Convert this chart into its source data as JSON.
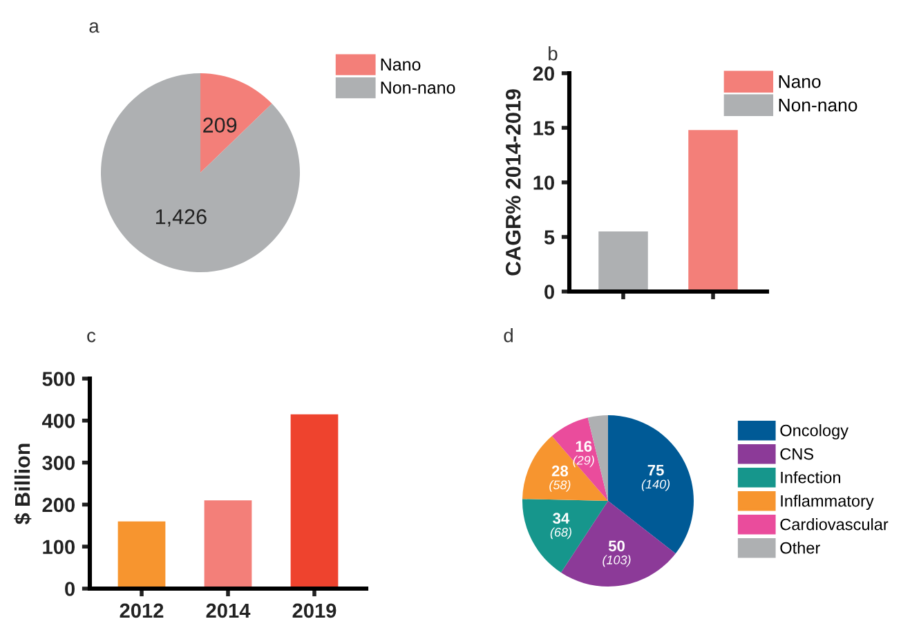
{
  "chart_data": [
    {
      "type": "pie",
      "title": "a",
      "categories": [
        "Nano",
        "Non-nano"
      ],
      "values": [
        209,
        1426
      ],
      "colors": [
        "#f37f79",
        "#aeb0b2"
      ],
      "value_labels": [
        "209",
        "1,426"
      ],
      "legend": "right"
    },
    {
      "type": "bar",
      "title": "b",
      "ylabel": "CAGR% 2014-2019",
      "categories": [
        null,
        null
      ],
      "ylim": [
        0,
        20
      ],
      "yticks": [
        0,
        5,
        10,
        15,
        20
      ],
      "legend": "top right",
      "grid": false,
      "series": [
        {
          "name": "Nano",
          "color": "#f37f79",
          "values": [
            null,
            14.8
          ]
        },
        {
          "name": "Non-nano",
          "color": "#aeb0b2",
          "values": [
            5.5,
            null
          ]
        }
      ]
    },
    {
      "type": "bar",
      "title": "c",
      "ylabel": "$ Billion",
      "categories": [
        "2012",
        "2014",
        "2019"
      ],
      "values": [
        160,
        210,
        415
      ],
      "colors": [
        "#f7952f",
        "#f37f79",
        "#ee432e"
      ],
      "ylim": [
        0,
        500
      ],
      "yticks": [
        0,
        100,
        200,
        300,
        400,
        500
      ],
      "grid": false
    },
    {
      "type": "pie",
      "title": "d",
      "categories": [
        "Oncology",
        "CNS",
        "Infection",
        "Inflammatory",
        "Cardiovascular",
        "Other"
      ],
      "values": [
        75,
        50,
        34,
        28,
        16,
        8
      ],
      "colors": [
        "#005a96",
        "#8c3a98",
        "#16968c",
        "#f7952f",
        "#ea4c9c",
        "#aeb0b2"
      ],
      "value_labels": [
        "75\n(140)",
        "50\n(103)",
        "34\n(68)",
        "28\n(58)",
        "16\n(29)",
        null
      ],
      "legend": "right"
    }
  ]
}
